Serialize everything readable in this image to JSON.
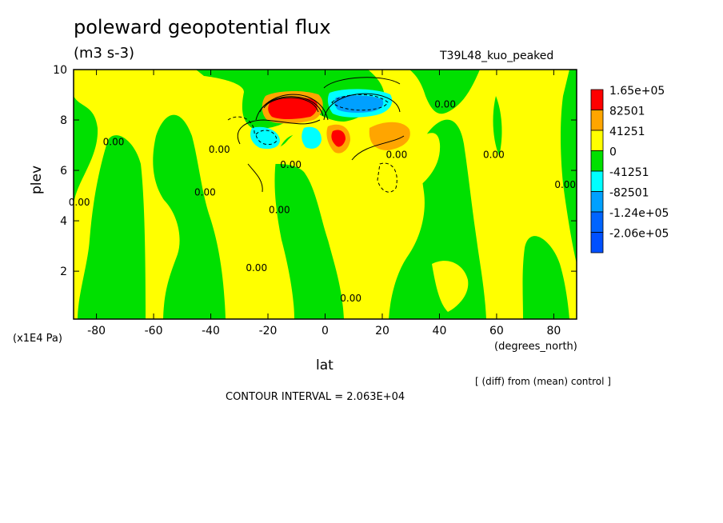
{
  "chart_data": {
    "type": "heatmap",
    "title": "poleward geopotential flux",
    "units": "(m3 s-3)",
    "run_label": "T39L48_kuo_peaked",
    "comparison_note": "[ (diff) from (mean) control ]",
    "contour_interval_text": "CONTOUR INTERVAL = 2.063E+04",
    "xlabel": "lat",
    "x_unit": "(degrees_north)",
    "ylabel": "plev",
    "y_unit": "(x1E4 Pa)",
    "xlim": [
      -88,
      88
    ],
    "ylim": [
      10,
      0.1
    ],
    "x_ticks": [
      {
        "value": -80,
        "label": "-80"
      },
      {
        "value": -60,
        "label": "-60"
      },
      {
        "value": -40,
        "label": "-40"
      },
      {
        "value": -20,
        "label": "-20"
      },
      {
        "value": 0,
        "label": "0"
      },
      {
        "value": 20,
        "label": "20"
      },
      {
        "value": 40,
        "label": "40"
      },
      {
        "value": 60,
        "label": "60"
      },
      {
        "value": 80,
        "label": "80"
      }
    ],
    "y_ticks": [
      {
        "value": 2,
        "label": "2"
      },
      {
        "value": 4,
        "label": "4"
      },
      {
        "value": 6,
        "label": "6"
      },
      {
        "value": 8,
        "label": "8"
      },
      {
        "value": 10,
        "label": "10"
      }
    ],
    "legend": [
      {
        "label": "1.65e+05",
        "color": "#ff0000"
      },
      {
        "label": "82501",
        "color": "#ffa500"
      },
      {
        "label": "41251",
        "color": "#ffff00"
      },
      {
        "label": "0",
        "color": "#00e000"
      },
      {
        "label": "-41251",
        "color": "#00ffff"
      },
      {
        "label": "-82501",
        "color": "#00a0ff"
      },
      {
        "label": "-1.24e+05",
        "color": "#0064ff"
      },
      {
        "label": "-2.06e+05",
        "color": "#0050ff"
      }
    ],
    "contour_labels": [
      {
        "text": "0.00",
        "lat": -24,
        "plev": 2.0
      },
      {
        "text": "0.00",
        "lat": 9,
        "plev": 0.8
      },
      {
        "text": "0.00",
        "lat": -86,
        "plev": 4.6
      },
      {
        "text": "0.00",
        "lat": -74,
        "plev": 7.0
      },
      {
        "text": "0.00",
        "lat": -42,
        "plev": 5.0
      },
      {
        "text": "0.00",
        "lat": -37,
        "plev": 6.7
      },
      {
        "text": "0.00",
        "lat": -16,
        "plev": 4.3
      },
      {
        "text": "0.00",
        "lat": -12,
        "plev": 6.1
      },
      {
        "text": "0.00",
        "lat": 25,
        "plev": 6.5
      },
      {
        "text": "0.00",
        "lat": 42,
        "plev": 8.5
      },
      {
        "text": "0.00",
        "lat": 59,
        "plev": 6.5
      },
      {
        "text": "0.00",
        "lat": 84,
        "plev": 5.3
      }
    ]
  }
}
